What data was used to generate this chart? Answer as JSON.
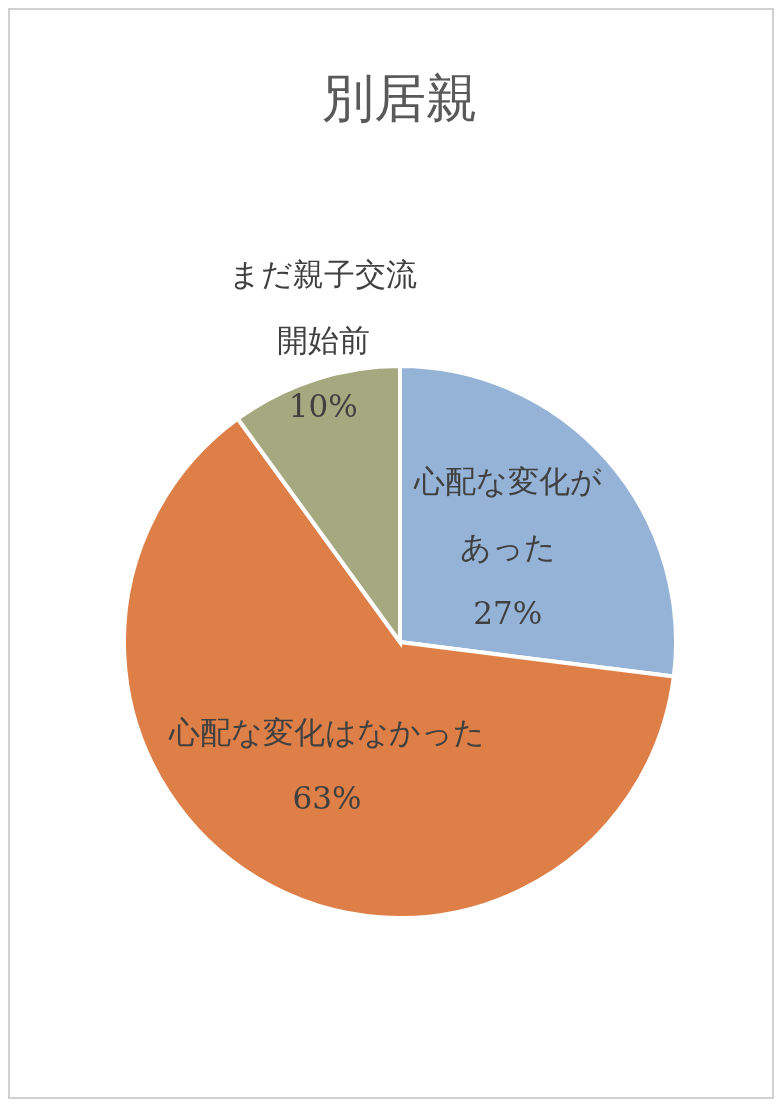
{
  "chart_data": {
    "type": "pie",
    "title": "別居親",
    "categories": [
      "心配な変化があった",
      "心配な変化はなかった",
      "まだ親子交流開始前"
    ],
    "values": [
      27,
      63,
      10
    ],
    "colors": [
      "#95b3d7",
      "#dd7f46",
      "#a5a97f"
    ],
    "value_labels": [
      "27%",
      "63%",
      "10%"
    ]
  }
}
